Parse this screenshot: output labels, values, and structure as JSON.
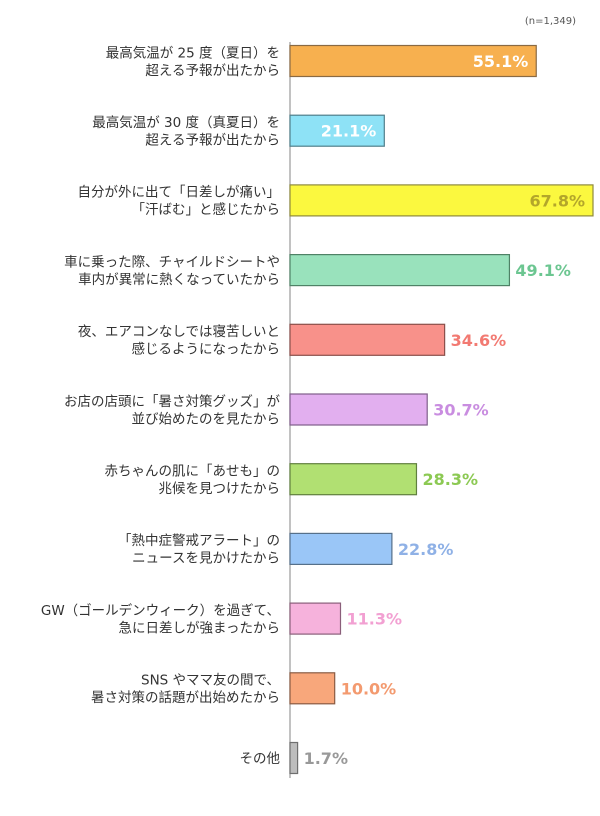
{
  "chart_data": {
    "type": "bar",
    "orientation": "horizontal",
    "note": "(n=1,349)",
    "unit": "%",
    "xlim": [
      0,
      70
    ],
    "categories": [
      [
        "最高気温が 25 度（夏日）を",
        "超える予報が出たから"
      ],
      [
        "最高気温が 30 度（真夏日）を",
        "超える予報が出たから"
      ],
      [
        "自分が外に出て「日差しが痛い」",
        "「汗ばむ」と感じたから"
      ],
      [
        "車に乗った際、チャイルドシートや",
        "車内が異常に熱くなっていたから"
      ],
      [
        "夜、エアコンなしでは寝苦しいと",
        "感じるようになったから"
      ],
      [
        "お店の店頭に「暑さ対策グッズ」が",
        "並び始めたのを見たから"
      ],
      [
        "赤ちゃんの肌に「あせも」の",
        "兆候を見つけたから"
      ],
      [
        "「熱中症警戒アラート」の",
        "ニュースを見かけたから"
      ],
      [
        "GW（ゴールデンウィーク）を過ぎて、",
        "急に日差しが強まったから"
      ],
      [
        "SNS やママ友の間で、",
        "暑さ対策の話題が出始めたから"
      ],
      [
        "その他"
      ]
    ],
    "values": [
      55.1,
      21.1,
      67.8,
      49.1,
      34.6,
      30.7,
      28.3,
      22.8,
      11.3,
      10.0,
      1.7
    ],
    "value_labels": [
      "55.1%",
      "21.1%",
      "67.8%",
      "49.1%",
      "34.6%",
      "30.7%",
      "28.3%",
      "22.8%",
      "11.3%",
      "10.0%",
      "1.7%"
    ],
    "label_inside_bar": [
      true,
      true,
      true,
      false,
      false,
      false,
      false,
      false,
      false,
      false,
      false
    ],
    "colors": {
      "fills": [
        "#f7b04f",
        "#8ee2f6",
        "#fbf83f",
        "#99e2bc",
        "#f8918a",
        "#e2afef",
        "#b1e072",
        "#9ac6f7",
        "#f6b2dc",
        "#f8a77b",
        "#bdbdbd"
      ],
      "strokes": [
        "#8a6a43",
        "#4f7e8a",
        "#8f8a3c",
        "#4f8266",
        "#8a4f4a",
        "#7f5e8a",
        "#607f3e",
        "#56708a",
        "#8a5f7a",
        "#8a5b43",
        "#6f6f6f"
      ],
      "value_text": [
        "#ffffff",
        "#ffffff",
        "#b3a62a",
        "#6cc691",
        "#f27a72",
        "#c98de0",
        "#8cc953",
        "#8fb1e6",
        "#f2a0d2",
        "#f39a6f",
        "#999999"
      ],
      "axis": "#9a9a9a"
    }
  }
}
